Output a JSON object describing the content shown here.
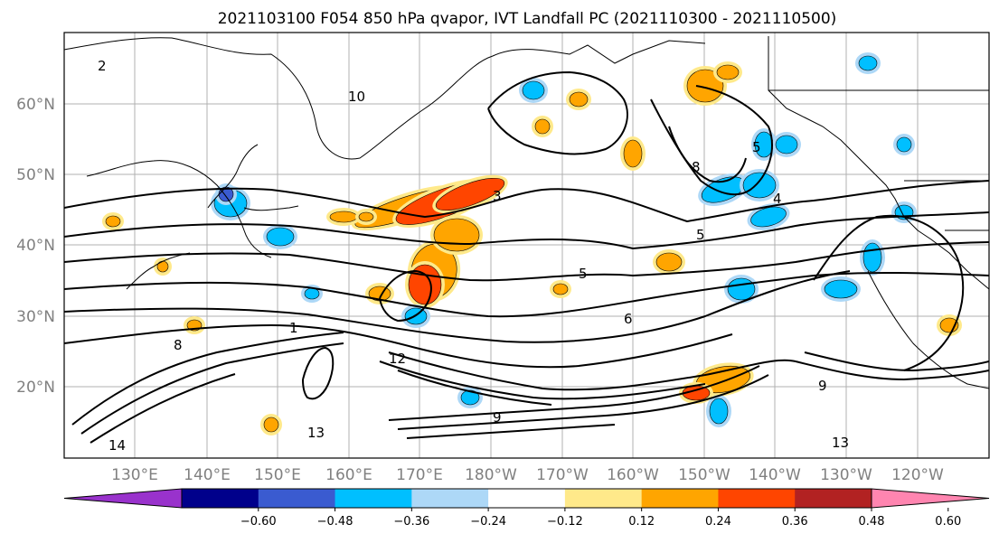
{
  "title": "2021103100 F054 850 hPa qvapor, IVT Landfall PC (2021110300 - 2021110500)",
  "latitude_labels": [
    "60°N",
    "50°N",
    "40°N",
    "30°N",
    "20°N"
  ],
  "longitude_labels": [
    "130°E",
    "140°E",
    "150°E",
    "160°E",
    "170°E",
    "180°W",
    "170°W",
    "160°W",
    "150°W",
    "140°W",
    "130°W",
    "120°W"
  ],
  "colorbar": {
    "colors": [
      "#9932cc",
      "#00008b",
      "#3a5bd0",
      "#00bfff",
      "#add8f7",
      "#ffffff",
      "#ffe98a",
      "#ffa500",
      "#ff4500",
      "#b22222",
      "#ff85b0"
    ],
    "tick_labels": [
      "−0.60",
      "−0.48",
      "−0.36",
      "−0.24",
      "−0.12",
      "0.12",
      "0.24",
      "0.36",
      "0.48",
      "0.60"
    ]
  },
  "contour_labels": [
    "2",
    "10",
    "3",
    "5",
    "6",
    "8",
    "9",
    "12",
    "13",
    "14",
    "1",
    "4",
    "5",
    "8",
    "9",
    "13",
    "5"
  ],
  "map": {
    "land_outline": "coastlines"
  }
}
